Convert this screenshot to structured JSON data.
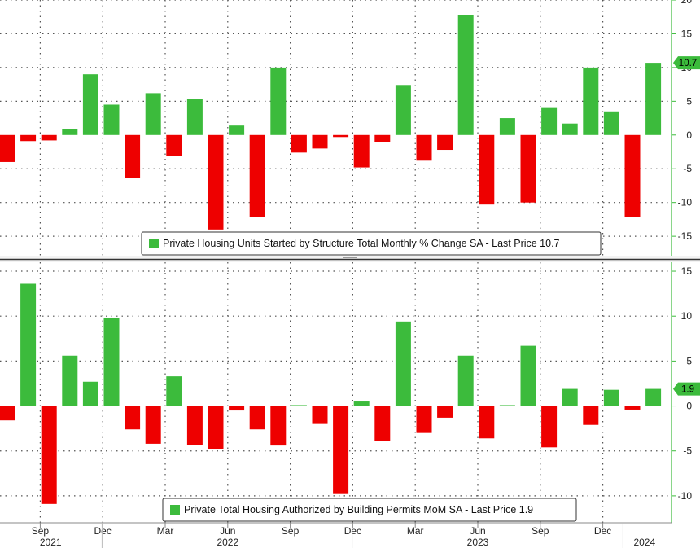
{
  "colors": {
    "positive": "#3cbb3c",
    "negative": "#ee0000",
    "axis": "#3cbb3c",
    "grid": "#555555",
    "last_price_bg": "#3cbb3c"
  },
  "x_axis": {
    "months": [
      {
        "label": "Sep",
        "index": 2
      },
      {
        "label": "Dec",
        "index": 5
      },
      {
        "label": "Mar",
        "index": 8
      },
      {
        "label": "Jun",
        "index": 11
      },
      {
        "label": "Sep",
        "index": 14
      },
      {
        "label": "Dec",
        "index": 17
      },
      {
        "label": "Mar",
        "index": 20
      },
      {
        "label": "Jun",
        "index": 23
      },
      {
        "label": "Sep",
        "index": 26
      },
      {
        "label": "Dec",
        "index": 29
      }
    ],
    "years": [
      {
        "label": "2021",
        "index": 2.5
      },
      {
        "label": "2022",
        "index": 11
      },
      {
        "label": "2023",
        "index": 23
      },
      {
        "label": "2024",
        "index": 31
      }
    ]
  },
  "chart_data": [
    {
      "type": "bar",
      "title": "Private Housing Units Started by Structure Total Monthly % Change SA - Last Price 10.7",
      "legend": "Private Housing Units Started by Structure Total Monthly % Change SA - Last Price 10.7",
      "last_price": "10.7",
      "ylim": [
        -18,
        20
      ],
      "yticks": [
        20,
        15,
        10,
        5,
        0,
        -5,
        -10,
        -15
      ],
      "categories": [
        "Jul 2021",
        "Aug 2021",
        "Sep 2021",
        "Oct 2021",
        "Nov 2021",
        "Dec 2021",
        "Jan 2022",
        "Feb 2022",
        "Mar 2022",
        "Apr 2022",
        "May 2022",
        "Jun 2022",
        "Jul 2022",
        "Aug 2022",
        "Sep 2022",
        "Oct 2022",
        "Nov 2022",
        "Dec 2022",
        "Jan 2023",
        "Feb 2023",
        "Mar 2023",
        "Apr 2023",
        "May 2023",
        "Jun 2023",
        "Jul 2023",
        "Aug 2023",
        "Sep 2023",
        "Oct 2023",
        "Nov 2023",
        "Dec 2023",
        "Jan 2024",
        "Feb 2024"
      ],
      "values": [
        -4.0,
        -0.9,
        -0.8,
        0.9,
        9.0,
        4.5,
        -6.4,
        6.2,
        -3.1,
        5.4,
        -14.0,
        1.4,
        -12.1,
        10.0,
        -2.6,
        -2.0,
        -0.3,
        -4.8,
        -1.1,
        7.3,
        -3.8,
        -2.2,
        17.8,
        -10.3,
        2.5,
        -10.0,
        4.0,
        1.7,
        10.0,
        3.5,
        -12.2,
        10.7
      ]
    },
    {
      "type": "bar",
      "title": "Private Total Housing Authorized by Building Permits MoM SA - Last Price 1.9",
      "legend": "Private Total Housing Authorized by Building Permits MoM SA - Last Price 1.9",
      "last_price": "1.9",
      "ylim": [
        -13,
        16
      ],
      "yticks": [
        15,
        10,
        5,
        0,
        -5,
        -10
      ],
      "categories": [
        "Jul 2021",
        "Aug 2021",
        "Sep 2021",
        "Oct 2021",
        "Nov 2021",
        "Dec 2021",
        "Jan 2022",
        "Feb 2022",
        "Mar 2022",
        "Apr 2022",
        "May 2022",
        "Jun 2022",
        "Jul 2022",
        "Aug 2022",
        "Sep 2022",
        "Oct 2022",
        "Nov 2022",
        "Dec 2022",
        "Jan 2023",
        "Feb 2023",
        "Mar 2023",
        "Apr 2023",
        "May 2023",
        "Jun 2023",
        "Jul 2023",
        "Aug 2023",
        "Sep 2023",
        "Oct 2023",
        "Nov 2023",
        "Dec 2023",
        "Jan 2024",
        "Feb 2024"
      ],
      "values": [
        -1.6,
        13.6,
        -10.9,
        5.6,
        2.7,
        9.8,
        -2.6,
        -4.2,
        3.3,
        -4.3,
        -4.8,
        -0.5,
        -2.6,
        -4.4,
        0.1,
        -2.0,
        -9.8,
        0.5,
        -3.9,
        9.4,
        -3.0,
        -1.3,
        5.6,
        -3.6,
        0.1,
        6.7,
        -4.6,
        1.9,
        -2.1,
        1.8,
        -0.4,
        1.9
      ]
    }
  ]
}
